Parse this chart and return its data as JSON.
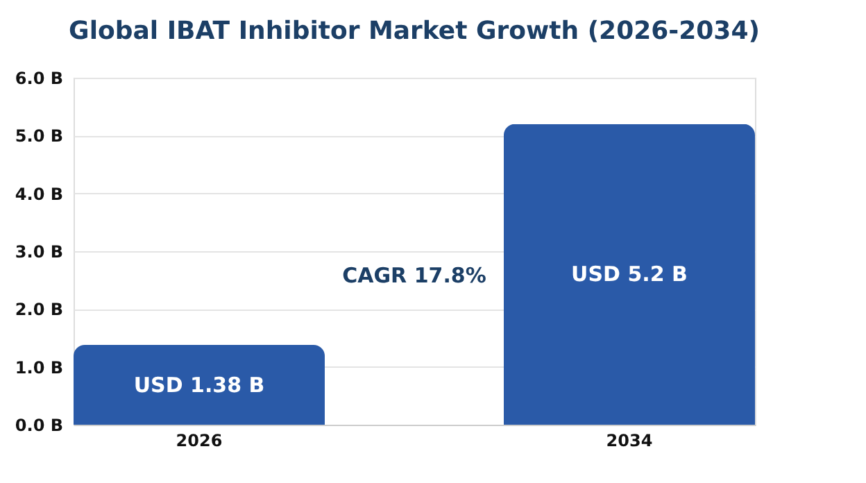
{
  "chart_data": {
    "type": "bar",
    "title": "Global IBAT Inhibitor Market Growth (2026-2034)",
    "categories": [
      "2026",
      "2034"
    ],
    "values": [
      1.38,
      5.2
    ],
    "value_labels": [
      "USD 1.38 B",
      "USD 5.2 B"
    ],
    "color": "#2a5aa8",
    "ylim": [
      0,
      6
    ],
    "yticks": [
      {
        "value": 0,
        "label": "0.0 B"
      },
      {
        "value": 1,
        "label": "1.0 B"
      },
      {
        "value": 2,
        "label": "2.0 B"
      },
      {
        "value": 3,
        "label": "3.0 B"
      },
      {
        "value": 4,
        "label": "4.0 B"
      },
      {
        "value": 5,
        "label": "5.0 B"
      },
      {
        "value": 6,
        "label": "6.0 B"
      }
    ],
    "grid": "y",
    "annotations": [
      "CAGR 17.8%"
    ]
  }
}
